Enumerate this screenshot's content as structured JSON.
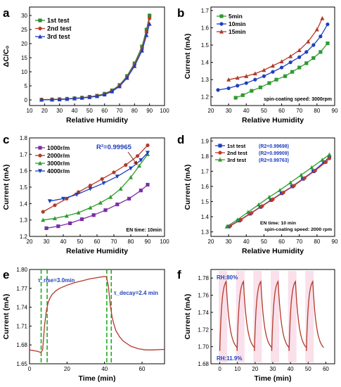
{
  "figure": {
    "panel_labels": [
      "a",
      "b",
      "c",
      "d",
      "e",
      "f"
    ]
  },
  "chart_data": [
    {
      "panel": "a",
      "type": "line",
      "xlabel": "Relative Humidity",
      "ylabel": "ΔC/C₀",
      "xlim": [
        10,
        100
      ],
      "ylim": [
        -2,
        33
      ],
      "xticks": [
        10,
        20,
        30,
        40,
        50,
        60,
        70,
        80,
        90,
        100
      ],
      "yticks": [
        0,
        5,
        10,
        15,
        20,
        25,
        30
      ],
      "grid": false,
      "legend_position": "top-left",
      "series": [
        {
          "name": "1st test",
          "color": "#2e8b2e",
          "marker": "square",
          "x": [
            18,
            25,
            30,
            35,
            40,
            45,
            50,
            55,
            60,
            65,
            70,
            75,
            80,
            85,
            88,
            90
          ],
          "y": [
            0.1,
            0.15,
            0.25,
            0.4,
            0.6,
            0.8,
            1.1,
            1.5,
            2.2,
            3.4,
            5.3,
            8.5,
            13,
            19,
            25,
            30
          ]
        },
        {
          "name": "2nd test",
          "color": "#c0392b",
          "marker": "circle",
          "x": [
            18,
            25,
            30,
            35,
            40,
            45,
            50,
            55,
            60,
            65,
            70,
            75,
            80,
            85,
            88,
            90
          ],
          "y": [
            0.1,
            0.12,
            0.2,
            0.35,
            0.55,
            0.75,
            1.0,
            1.4,
            2.0,
            3.2,
            5.0,
            8.0,
            12.5,
            18,
            24,
            29
          ]
        },
        {
          "name": "3rd test",
          "color": "#1f3fbf",
          "marker": "triangle",
          "x": [
            18,
            25,
            30,
            35,
            40,
            45,
            50,
            55,
            60,
            65,
            70,
            75,
            80,
            85,
            88,
            90
          ],
          "y": [
            0.05,
            0.1,
            0.18,
            0.3,
            0.5,
            0.7,
            0.95,
            1.3,
            1.9,
            3.0,
            4.8,
            7.8,
            12,
            17.5,
            23,
            27
          ]
        }
      ]
    },
    {
      "panel": "b",
      "type": "line",
      "xlabel": "Relative Humidity",
      "ylabel": "Current (mA)",
      "xlim": [
        20,
        90
      ],
      "ylim": [
        1.15,
        1.72
      ],
      "xticks": [
        20,
        30,
        40,
        50,
        60,
        70,
        80,
        90
      ],
      "yticks": [
        1.2,
        1.3,
        1.4,
        1.5,
        1.6,
        1.7
      ],
      "annotation": "spin-coating speed: 3000rpm",
      "legend_position": "top-left",
      "series": [
        {
          "name": "5min",
          "color": "#2e9b2e",
          "marker": "square",
          "x": [
            34,
            38,
            43,
            48,
            53,
            57,
            62,
            66,
            70,
            74,
            78,
            82,
            86
          ],
          "y": [
            1.195,
            1.21,
            1.235,
            1.255,
            1.28,
            1.3,
            1.32,
            1.345,
            1.37,
            1.395,
            1.425,
            1.46,
            1.51
          ]
        },
        {
          "name": "10min",
          "color": "#1f3fbf",
          "marker": "circle",
          "x": [
            24,
            30,
            35,
            40,
            45,
            50,
            55,
            60,
            65,
            70,
            74,
            78,
            82,
            86
          ],
          "y": [
            1.24,
            1.25,
            1.265,
            1.28,
            1.3,
            1.32,
            1.345,
            1.37,
            1.4,
            1.43,
            1.46,
            1.5,
            1.55,
            1.62
          ]
        },
        {
          "name": "15min",
          "color": "#b23a2a",
          "marker": "triangle",
          "x": [
            30,
            35,
            40,
            45,
            50,
            55,
            60,
            65,
            70,
            75,
            80,
            83
          ],
          "y": [
            1.3,
            1.31,
            1.32,
            1.335,
            1.355,
            1.38,
            1.405,
            1.435,
            1.47,
            1.52,
            1.59,
            1.655
          ]
        }
      ]
    },
    {
      "panel": "c",
      "type": "line",
      "xlabel": "Relative Humidity",
      "ylabel": "Current (mA)",
      "xlim": [
        20,
        100
      ],
      "ylim": [
        1.2,
        1.8
      ],
      "xticks": [
        20,
        30,
        40,
        50,
        60,
        70,
        80,
        90,
        100
      ],
      "yticks": [
        1.2,
        1.3,
        1.4,
        1.5,
        1.6,
        1.7,
        1.8
      ],
      "annotation_r2": "R²=0.99965",
      "annotation_entime": "EN time: 10min",
      "legend_position": "top-left",
      "series": [
        {
          "name": "1000r/m",
          "color": "#7b2fa8",
          "marker": "square",
          "x": [
            30,
            37,
            44,
            51,
            58,
            65,
            72,
            79,
            86,
            90
          ],
          "y": [
            1.25,
            1.262,
            1.28,
            1.305,
            1.33,
            1.36,
            1.395,
            1.43,
            1.48,
            1.515
          ]
        },
        {
          "name": "2000r/m",
          "color": "#b23a2a",
          "marker": "circle",
          "x": [
            28,
            35,
            42,
            49,
            56,
            63,
            70,
            77,
            84,
            90
          ],
          "y": [
            1.35,
            1.39,
            1.43,
            1.47,
            1.51,
            1.55,
            1.59,
            1.635,
            1.69,
            1.755
          ]
        },
        {
          "name": "3000r/m",
          "color": "#2e9b2e",
          "marker": "triangle",
          "x": [
            28,
            35,
            42,
            49,
            56,
            62,
            68,
            74,
            80,
            85,
            90
          ],
          "y": [
            1.3,
            1.31,
            1.325,
            1.345,
            1.375,
            1.405,
            1.44,
            1.49,
            1.56,
            1.63,
            1.7
          ]
        },
        {
          "name": "4000r/m",
          "color": "#1f3fbf",
          "marker": "triangle-down",
          "x": [
            32,
            40,
            48,
            56,
            64,
            72,
            80,
            86,
            90
          ],
          "y": [
            1.415,
            1.43,
            1.455,
            1.49,
            1.525,
            1.565,
            1.615,
            1.665,
            1.71
          ]
        }
      ]
    },
    {
      "panel": "d",
      "type": "line",
      "xlabel": "Relative Humidity",
      "ylabel": "Current (mA)",
      "xlim": [
        20,
        90
      ],
      "ylim": [
        1.27,
        1.92
      ],
      "xticks": [
        20,
        30,
        40,
        50,
        60,
        70,
        80,
        90
      ],
      "yticks": [
        1.3,
        1.4,
        1.5,
        1.6,
        1.7,
        1.8,
        1.9
      ],
      "annotation_entime": "EN time: 10 min",
      "annotation_speed": "spin-coating speed: 2000 rpm",
      "legend_position": "top-left",
      "series": [
        {
          "name": "1st test",
          "r2": "(R2=0.99698)",
          "color": "#1f3fbf",
          "marker": "square",
          "x": [
            30,
            36,
            42,
            48,
            54,
            60,
            66,
            72,
            78,
            84,
            87
          ],
          "y": [
            1.335,
            1.375,
            1.42,
            1.465,
            1.51,
            1.555,
            1.6,
            1.65,
            1.7,
            1.76,
            1.795
          ]
        },
        {
          "name": "2nd test",
          "r2": "(R2=0.99909)",
          "color": "#c0392b",
          "marker": "circle",
          "x": [
            31,
            37,
            43,
            49,
            55,
            61,
            67,
            73,
            79,
            85,
            87
          ],
          "y": [
            1.34,
            1.38,
            1.425,
            1.47,
            1.515,
            1.56,
            1.605,
            1.655,
            1.705,
            1.76,
            1.785
          ]
        },
        {
          "name": "3rd test",
          "r2": "(R2=0.99763)",
          "color": "#2e9b2e",
          "marker": "triangle",
          "x": [
            29,
            35,
            41,
            47,
            53,
            59,
            65,
            71,
            77,
            83,
            87
          ],
          "y": [
            1.335,
            1.38,
            1.43,
            1.48,
            1.53,
            1.575,
            1.625,
            1.675,
            1.725,
            1.775,
            1.81
          ]
        }
      ]
    },
    {
      "panel": "e",
      "type": "line",
      "xlabel": "Time (min)",
      "ylabel": "Current (mA)",
      "xlim": [
        0,
        72
      ],
      "ylim": [
        1.65,
        1.8
      ],
      "xticks": [
        0,
        20,
        40,
        60
      ],
      "yticks": [
        1.65,
        1.68,
        1.71,
        1.74,
        1.77,
        1.8
      ],
      "annotation_rise": "τ_rise=3.0min",
      "annotation_decay": "τ_decay=2.4 min",
      "series": [
        {
          "name": "current",
          "color": "#b23a2a",
          "x": [
            0,
            4,
            6,
            7,
            8,
            9,
            10,
            11,
            12,
            14,
            16,
            20,
            24,
            28,
            32,
            36,
            40,
            41,
            42,
            43,
            44,
            45,
            46,
            48,
            50,
            54,
            58,
            62,
            66,
            72
          ],
          "y": [
            1.672,
            1.67,
            1.668,
            1.672,
            1.71,
            1.735,
            1.748,
            1.755,
            1.76,
            1.766,
            1.77,
            1.775,
            1.779,
            1.782,
            1.785,
            1.787,
            1.789,
            1.788,
            1.775,
            1.745,
            1.725,
            1.713,
            1.703,
            1.693,
            1.686,
            1.678,
            1.674,
            1.672,
            1.672,
            1.673
          ]
        }
      ],
      "markers": [
        {
          "x": 6.2,
          "color": "#22aa22"
        },
        {
          "x": 9.4,
          "color": "#22aa22"
        },
        {
          "x": 41.2,
          "color": "#22aa22"
        },
        {
          "x": 43.6,
          "color": "#22aa22"
        }
      ]
    },
    {
      "panel": "f",
      "type": "line",
      "xlabel": "Time (min)",
      "ylabel": "Current (mA)",
      "xlim": [
        -5,
        65
      ],
      "ylim": [
        1.68,
        1.79
      ],
      "xticks": [
        0,
        10,
        20,
        30,
        40,
        50,
        60
      ],
      "yticks": [
        1.68,
        1.7,
        1.72,
        1.74,
        1.76,
        1.78
      ],
      "annotation_high": "RH:80%",
      "annotation_low": "RH:11.9%",
      "cycles": {
        "count": 6,
        "start": 0,
        "period": 9.8,
        "rise": 3.6,
        "low": 1.695,
        "high": 1.776
      },
      "series": [
        {
          "name": "current",
          "color": "#b23a2a"
        }
      ]
    }
  ]
}
